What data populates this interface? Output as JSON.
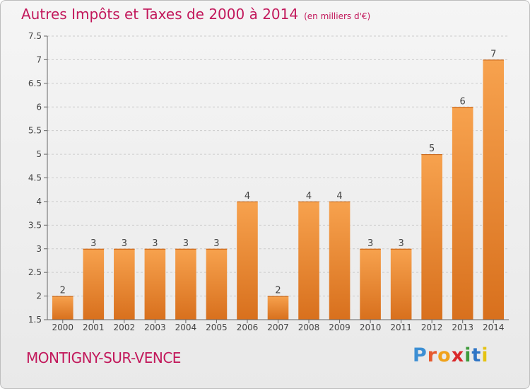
{
  "header": {
    "title": "Autres Impôts et Taxes de 2000 à 2014",
    "subtitle": "(en milliers d'€)"
  },
  "footer": {
    "location": "MONTIGNY-SUR-VENCE",
    "logo": {
      "text": "Proxiti",
      "colors": [
        "#3c8fd4",
        "#e65a2f",
        "#f0a21b",
        "#d9272a",
        "#3f9b3c",
        "#2f75c5",
        "#e5c313"
      ]
    }
  },
  "colors": {
    "title": "#c2185b",
    "bar_light": "#f7a24e",
    "bar_dark": "#d8701d",
    "grid": "#cccccc"
  },
  "chart_data": {
    "type": "bar",
    "title": "Autres Impôts et Taxes de 2000 à 2014",
    "subtitle": "(en milliers d'€)",
    "xlabel": "",
    "ylabel": "",
    "categories": [
      "2000",
      "2001",
      "2002",
      "2003",
      "2004",
      "2005",
      "2006",
      "2007",
      "2008",
      "2009",
      "2010",
      "2011",
      "2012",
      "2013",
      "2014"
    ],
    "values": [
      2,
      3,
      3,
      3,
      3,
      3,
      4,
      2,
      4,
      4,
      3,
      3,
      5,
      6,
      7
    ],
    "ylim": [
      1.5,
      7.5
    ],
    "yticks": [
      "1.5",
      "2",
      "2.5",
      "3",
      "3.5",
      "4",
      "4.5",
      "5",
      "5.5",
      "6",
      "6.5",
      "7",
      "7.5"
    ],
    "grid": true,
    "data_labels": true
  }
}
